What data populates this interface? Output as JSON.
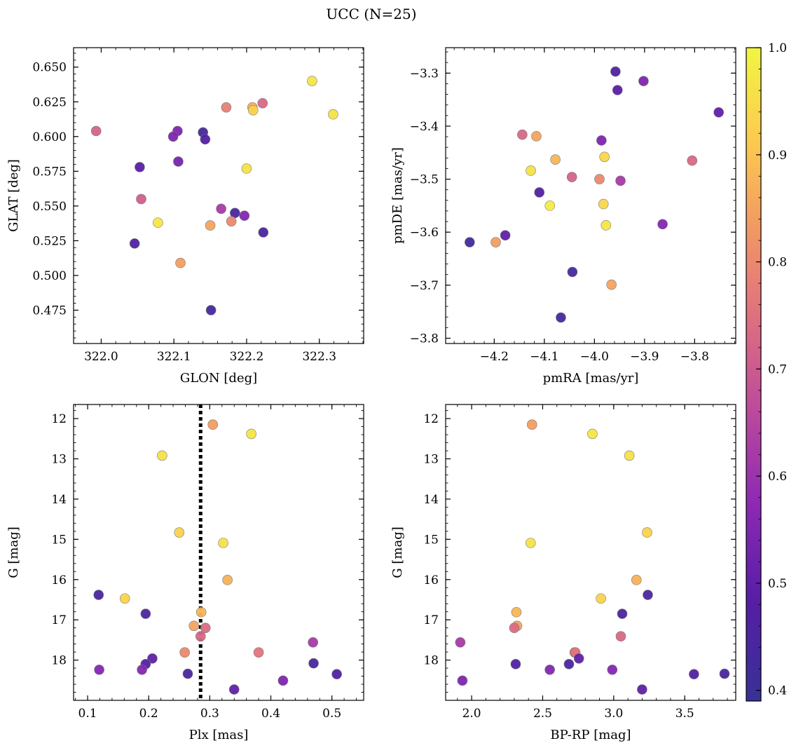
{
  "figure": {
    "title": "UCC (N=25)"
  },
  "colorbar": {
    "colormap": "plasma",
    "range": [
      0.39,
      1.0
    ],
    "ticks": [
      0.4,
      0.5,
      0.6,
      0.7,
      0.8,
      0.9,
      1.0
    ],
    "tick_labels": [
      "0.4",
      "0.5",
      "0.6",
      "0.7",
      "0.8",
      "0.9",
      "1.0"
    ]
  },
  "chart_data": [
    {
      "type": "scatter",
      "id": "glon-glat",
      "xlabel": "GLON [deg]",
      "ylabel": "GLAT [deg]",
      "xlim": [
        321.962,
        322.361
      ],
      "ylim": [
        0.451,
        0.664
      ],
      "xticks": [
        322.0,
        322.1,
        322.2,
        322.3
      ],
      "xtick_labels": [
        "322.0",
        "322.1",
        "322.2",
        "322.3"
      ],
      "yticks": [
        0.475,
        0.5,
        0.525,
        0.55,
        0.575,
        0.6,
        0.625,
        0.65
      ],
      "ytick_labels": [
        "0.475",
        "0.500",
        "0.525",
        "0.550",
        "0.575",
        "0.600",
        "0.625",
        "0.650"
      ],
      "invert_y": false,
      "grid": false,
      "points": [
        {
          "x": 322.29,
          "y": 0.64,
          "c": 0.97
        },
        {
          "x": 322.319,
          "y": 0.616,
          "c": 0.96
        },
        {
          "x": 322.222,
          "y": 0.624,
          "c": 0.73
        },
        {
          "x": 322.208,
          "y": 0.621,
          "c": 0.87
        },
        {
          "x": 322.209,
          "y": 0.619,
          "c": 0.93
        },
        {
          "x": 322.172,
          "y": 0.621,
          "c": 0.78
        },
        {
          "x": 321.993,
          "y": 0.604,
          "c": 0.72
        },
        {
          "x": 322.105,
          "y": 0.604,
          "c": 0.55
        },
        {
          "x": 322.14,
          "y": 0.603,
          "c": 0.43
        },
        {
          "x": 322.099,
          "y": 0.6,
          "c": 0.55
        },
        {
          "x": 322.143,
          "y": 0.598,
          "c": 0.47
        },
        {
          "x": 322.106,
          "y": 0.582,
          "c": 0.54
        },
        {
          "x": 322.053,
          "y": 0.578,
          "c": 0.49
        },
        {
          "x": 322.2,
          "y": 0.577,
          "c": 0.96
        },
        {
          "x": 322.055,
          "y": 0.555,
          "c": 0.71
        },
        {
          "x": 322.165,
          "y": 0.548,
          "c": 0.62
        },
        {
          "x": 322.184,
          "y": 0.545,
          "c": 0.45
        },
        {
          "x": 322.197,
          "y": 0.543,
          "c": 0.56
        },
        {
          "x": 322.179,
          "y": 0.539,
          "c": 0.8
        },
        {
          "x": 322.078,
          "y": 0.538,
          "c": 0.97
        },
        {
          "x": 322.15,
          "y": 0.536,
          "c": 0.85
        },
        {
          "x": 322.223,
          "y": 0.531,
          "c": 0.45
        },
        {
          "x": 322.046,
          "y": 0.523,
          "c": 0.47
        },
        {
          "x": 322.109,
          "y": 0.509,
          "c": 0.84
        },
        {
          "x": 322.151,
          "y": 0.475,
          "c": 0.43
        }
      ]
    },
    {
      "type": "scatter",
      "id": "pmra-pmde",
      "xlabel": "pmRA [mas/yr]",
      "ylabel": "pmDE [mas/yr]",
      "xlim": [
        -4.297,
        -3.718
      ],
      "ylim": [
        -3.81,
        -3.252
      ],
      "xticks": [
        -4.2,
        -4.1,
        -4.0,
        -3.9,
        -3.8
      ],
      "xtick_labels": [
        "−4.2",
        "−4.1",
        "−4.0",
        "−3.9",
        "−3.8"
      ],
      "yticks": [
        -3.8,
        -3.7,
        -3.6,
        -3.5,
        -3.4,
        -3.3
      ],
      "ytick_labels": [
        "−3.8",
        "−3.7",
        "−3.6",
        "−3.5",
        "−3.4",
        "−3.3"
      ],
      "invert_y": false,
      "grid": false,
      "points": [
        {
          "x": -3.958,
          "y": -3.297,
          "c": 0.47
        },
        {
          "x": -3.902,
          "y": -3.315,
          "c": 0.55
        },
        {
          "x": -3.954,
          "y": -3.332,
          "c": 0.49
        },
        {
          "x": -3.752,
          "y": -3.374,
          "c": 0.5
        },
        {
          "x": -4.144,
          "y": -3.416,
          "c": 0.73
        },
        {
          "x": -4.116,
          "y": -3.419,
          "c": 0.85
        },
        {
          "x": -3.986,
          "y": -3.427,
          "c": 0.55
        },
        {
          "x": -3.98,
          "y": -3.458,
          "c": 0.94
        },
        {
          "x": -4.078,
          "y": -3.463,
          "c": 0.88
        },
        {
          "x": -3.805,
          "y": -3.465,
          "c": 0.73
        },
        {
          "x": -4.127,
          "y": -3.484,
          "c": 0.96
        },
        {
          "x": -4.045,
          "y": -3.496,
          "c": 0.72
        },
        {
          "x": -3.99,
          "y": -3.5,
          "c": 0.8
        },
        {
          "x": -3.948,
          "y": -3.503,
          "c": 0.62
        },
        {
          "x": -4.11,
          "y": -3.525,
          "c": 0.47
        },
        {
          "x": -3.982,
          "y": -3.547,
          "c": 0.94
        },
        {
          "x": -4.089,
          "y": -3.55,
          "c": 0.98
        },
        {
          "x": -3.977,
          "y": -3.587,
          "c": 0.97
        },
        {
          "x": -3.864,
          "y": -3.585,
          "c": 0.56
        },
        {
          "x": -4.178,
          "y": -3.606,
          "c": 0.5
        },
        {
          "x": -4.249,
          "y": -3.619,
          "c": 0.43
        },
        {
          "x": -4.197,
          "y": -3.619,
          "c": 0.84
        },
        {
          "x": -4.044,
          "y": -3.675,
          "c": 0.43
        },
        {
          "x": -3.966,
          "y": -3.699,
          "c": 0.85
        },
        {
          "x": -4.067,
          "y": -3.761,
          "c": 0.43
        }
      ]
    },
    {
      "type": "scatter",
      "id": "plx-g",
      "xlabel": "Plx [mas]",
      "ylabel": "G [mag]",
      "xlim": [
        0.077,
        0.552
      ],
      "ylim": [
        19.0,
        11.65
      ],
      "xticks": [
        0.1,
        0.2,
        0.3,
        0.4,
        0.5
      ],
      "xtick_labels": [
        "0.1",
        "0.2",
        "0.3",
        "0.4",
        "0.5"
      ],
      "yticks": [
        12,
        13,
        14,
        15,
        16,
        17,
        18
      ],
      "ytick_labels": [
        "12",
        "13",
        "14",
        "15",
        "16",
        "17",
        "18"
      ],
      "invert_y": true,
      "grid": false,
      "vline": {
        "x": 0.285,
        "style": "dotted"
      },
      "points": [
        {
          "x": 0.305,
          "y": 12.15,
          "c": 0.84
        },
        {
          "x": 0.368,
          "y": 12.38,
          "c": 0.97
        },
        {
          "x": 0.222,
          "y": 12.92,
          "c": 0.96
        },
        {
          "x": 0.25,
          "y": 14.83,
          "c": 0.93
        },
        {
          "x": 0.322,
          "y": 15.09,
          "c": 0.96
        },
        {
          "x": 0.329,
          "y": 16.01,
          "c": 0.87
        },
        {
          "x": 0.118,
          "y": 16.38,
          "c": 0.45
        },
        {
          "x": 0.161,
          "y": 16.47,
          "c": 0.93
        },
        {
          "x": 0.286,
          "y": 16.81,
          "c": 0.88
        },
        {
          "x": 0.195,
          "y": 16.85,
          "c": 0.45
        },
        {
          "x": 0.274,
          "y": 17.15,
          "c": 0.85
        },
        {
          "x": 0.293,
          "y": 17.2,
          "c": 0.74
        },
        {
          "x": 0.285,
          "y": 17.41,
          "c": 0.73
        },
        {
          "x": 0.469,
          "y": 17.56,
          "c": 0.62
        },
        {
          "x": 0.259,
          "y": 17.81,
          "c": 0.8
        },
        {
          "x": 0.38,
          "y": 17.81,
          "c": 0.76
        },
        {
          "x": 0.206,
          "y": 17.96,
          "c": 0.5
        },
        {
          "x": 0.195,
          "y": 18.1,
          "c": 0.47
        },
        {
          "x": 0.47,
          "y": 18.08,
          "c": 0.45
        },
        {
          "x": 0.119,
          "y": 18.24,
          "c": 0.56
        },
        {
          "x": 0.189,
          "y": 18.24,
          "c": 0.56
        },
        {
          "x": 0.264,
          "y": 18.34,
          "c": 0.45
        },
        {
          "x": 0.508,
          "y": 18.35,
          "c": 0.47
        },
        {
          "x": 0.42,
          "y": 18.51,
          "c": 0.55
        },
        {
          "x": 0.34,
          "y": 18.73,
          "c": 0.5
        }
      ]
    },
    {
      "type": "scatter",
      "id": "bprp-g",
      "xlabel": "BP-RP [mag]",
      "ylabel": "G [mag]",
      "xlim": [
        1.817,
        3.859
      ],
      "ylim": [
        19.0,
        11.65
      ],
      "xticks": [
        2.0,
        2.5,
        3.0,
        3.5
      ],
      "xtick_labels": [
        "2.0",
        "2.5",
        "3.0",
        "3.5"
      ],
      "yticks": [
        12,
        13,
        14,
        15,
        16,
        17,
        18
      ],
      "ytick_labels": [
        "12",
        "13",
        "14",
        "15",
        "16",
        "17",
        "18"
      ],
      "invert_y": true,
      "grid": false,
      "points": [
        {
          "x": 2.425,
          "y": 12.15,
          "c": 0.84
        },
        {
          "x": 2.85,
          "y": 12.38,
          "c": 0.97
        },
        {
          "x": 3.11,
          "y": 12.92,
          "c": 0.96
        },
        {
          "x": 3.235,
          "y": 14.83,
          "c": 0.93
        },
        {
          "x": 2.415,
          "y": 15.09,
          "c": 0.96
        },
        {
          "x": 3.16,
          "y": 16.01,
          "c": 0.87
        },
        {
          "x": 3.24,
          "y": 16.38,
          "c": 0.45
        },
        {
          "x": 2.91,
          "y": 16.47,
          "c": 0.93
        },
        {
          "x": 2.315,
          "y": 16.81,
          "c": 0.88
        },
        {
          "x": 3.06,
          "y": 16.85,
          "c": 0.45
        },
        {
          "x": 2.32,
          "y": 17.15,
          "c": 0.85
        },
        {
          "x": 2.3,
          "y": 17.2,
          "c": 0.74
        },
        {
          "x": 3.05,
          "y": 17.41,
          "c": 0.73
        },
        {
          "x": 1.92,
          "y": 17.56,
          "c": 0.62
        },
        {
          "x": 2.725,
          "y": 17.81,
          "c": 0.8
        },
        {
          "x": 2.73,
          "y": 17.81,
          "c": 0.76
        },
        {
          "x": 2.755,
          "y": 17.96,
          "c": 0.5
        },
        {
          "x": 2.31,
          "y": 18.1,
          "c": 0.47
        },
        {
          "x": 2.685,
          "y": 18.1,
          "c": 0.45
        },
        {
          "x": 2.55,
          "y": 18.24,
          "c": 0.56
        },
        {
          "x": 2.99,
          "y": 18.24,
          "c": 0.56
        },
        {
          "x": 3.78,
          "y": 18.34,
          "c": 0.45
        },
        {
          "x": 3.565,
          "y": 18.35,
          "c": 0.47
        },
        {
          "x": 1.935,
          "y": 18.51,
          "c": 0.55
        },
        {
          "x": 3.2,
          "y": 18.73,
          "c": 0.5
        }
      ]
    }
  ]
}
